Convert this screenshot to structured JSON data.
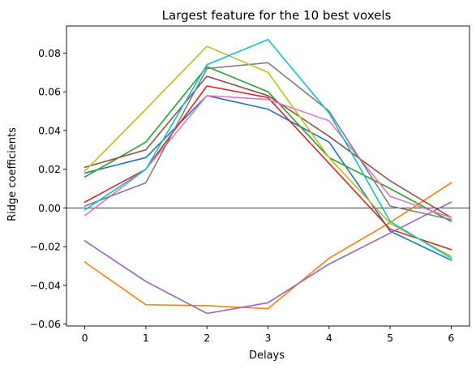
{
  "chart_data": {
    "type": "line",
    "title": "Largest feature for the 10 best voxels",
    "xlabel": "Delays",
    "ylabel": "Ridge coefficients",
    "x": [
      0,
      1,
      2,
      3,
      4,
      5,
      6
    ],
    "xlim": [
      -0.3,
      6.3
    ],
    "ylim": [
      -0.061,
      0.094
    ],
    "xticks": [
      0,
      1,
      2,
      3,
      4,
      5,
      6
    ],
    "yticks": [
      -0.06,
      -0.04,
      -0.02,
      0.0,
      0.02,
      0.04,
      0.06,
      0.08
    ],
    "ytick_labels": [
      "−0.06",
      "−0.04",
      "−0.02",
      "0.00",
      "0.02",
      "0.04",
      "0.06",
      "0.08"
    ],
    "grid": false,
    "legend": "none",
    "reference_line": {
      "y": 0.0,
      "color": "#000000"
    },
    "series": [
      {
        "color": "#1f77b4",
        "values": [
          0.018,
          0.026,
          0.058,
          0.051,
          0.034,
          -0.012,
          -0.027
        ]
      },
      {
        "color": "#ff7f0e",
        "values": [
          -0.028,
          -0.05,
          -0.0505,
          -0.052,
          -0.026,
          -0.0075,
          0.013
        ]
      },
      {
        "color": "#2ca02c",
        "values": [
          0.016,
          0.034,
          0.073,
          0.06,
          0.026,
          0.01,
          -0.007
        ]
      },
      {
        "color": "#d62728",
        "values": [
          0.003,
          0.02,
          0.063,
          0.057,
          0.023,
          -0.011,
          -0.0215
        ]
      },
      {
        "color": "#9467bd",
        "values": [
          -0.017,
          -0.038,
          -0.0545,
          -0.049,
          -0.029,
          -0.013,
          0.003
        ]
      },
      {
        "color": "#8c564b",
        "values": [
          0.021,
          0.03,
          0.068,
          0.058,
          0.037,
          0.014,
          -0.005
        ]
      },
      {
        "color": "#e377c2",
        "values": [
          -0.004,
          0.02,
          0.058,
          0.056,
          0.045,
          0.006,
          -0.005
        ]
      },
      {
        "color": "#7f7f7f",
        "values": [
          0.001,
          0.013,
          0.072,
          0.075,
          0.05,
          0.001,
          -0.006
        ]
      },
      {
        "color": "#bcbd22",
        "values": [
          0.019,
          0.051,
          0.0835,
          0.07,
          0.026,
          -0.008,
          -0.025
        ]
      },
      {
        "color": "#17becf",
        "values": [
          -0.001,
          0.02,
          0.074,
          0.087,
          0.049,
          -0.007,
          -0.026
        ]
      }
    ]
  }
}
